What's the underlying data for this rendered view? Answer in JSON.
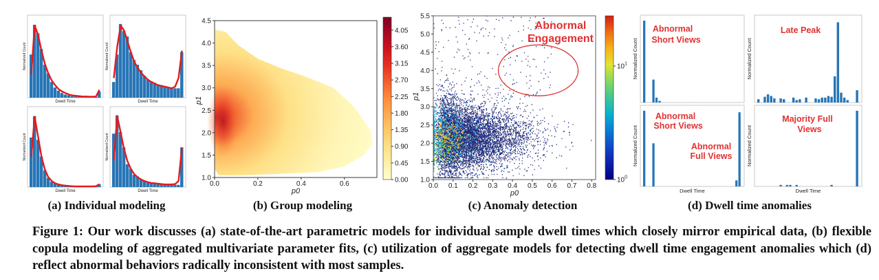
{
  "caption": "Figure 1: Our work discusses (a) state-of-the-art parametric models for individual sample dwell times which closely mirror empirical data, (b) flexible copula modeling of aggregated multivariate parameter fits, (c) utilization of aggregate models for detecting dwell time engagement anomalies which (d) reflect abnormal behaviors radically inconsistent with most samples.",
  "subcaptions": {
    "a": "(a) Individual modeling",
    "b": "(b) Group modeling",
    "c": "(c) Anomaly detection",
    "d": "(d) Dwell time anomalies"
  },
  "colors": {
    "bar": "#2775b6",
    "fit": "#e41a1c",
    "annotation": "#e03131",
    "scatter_dots": "#222a7a"
  },
  "chart_data": [
    {
      "panel": "a",
      "type": "bar",
      "subplots": [
        {
          "xlabel": "Dwell Time",
          "ylabel": "Normalized Count",
          "values": [
            0.55,
            0.93,
            0.82,
            0.62,
            0.42,
            0.31,
            0.2,
            0.13,
            0.09,
            0.06,
            0.04,
            0.03,
            0.02,
            0.02,
            0.015,
            0.01,
            0.01,
            0.01,
            0.01,
            0.01,
            0.08
          ],
          "fit": [
            0.3,
            0.92,
            0.8,
            0.6,
            0.43,
            0.31,
            0.22,
            0.16,
            0.11,
            0.08,
            0.06,
            0.04,
            0.03,
            0.025,
            0.02,
            0.015,
            0.015,
            0.012,
            0.012,
            0.015,
            0.1
          ]
        },
        {
          "xlabel": "Dwell Time",
          "ylabel": "Normalized Count",
          "values": [
            0.2,
            0.55,
            0.94,
            0.85,
            0.78,
            0.58,
            0.48,
            0.42,
            0.35,
            0.28,
            0.23,
            0.21,
            0.19,
            0.17,
            0.16,
            0.14,
            0.13,
            0.12,
            0.12,
            0.12,
            0.58
          ],
          "fit": [
            0.25,
            0.65,
            0.92,
            0.86,
            0.72,
            0.58,
            0.46,
            0.38,
            0.32,
            0.27,
            0.23,
            0.2,
            0.18,
            0.16,
            0.15,
            0.14,
            0.13,
            0.12,
            0.14,
            0.25,
            0.6
          ]
        },
        {
          "xlabel": "Dwell Time",
          "ylabel": "Normalized Count",
          "values": [
            0.65,
            0.93,
            0.62,
            0.4,
            0.22,
            0.12,
            0.07,
            0.05,
            0.03,
            0.02,
            0.015,
            0.01,
            0.01,
            0.01,
            0.01,
            0.01,
            0.01,
            0.01,
            0.01,
            0.01,
            0.04
          ],
          "fit": [
            0.4,
            0.92,
            0.66,
            0.4,
            0.23,
            0.13,
            0.08,
            0.05,
            0.035,
            0.025,
            0.02,
            0.015,
            0.012,
            0.01,
            0.01,
            0.01,
            0.01,
            0.01,
            0.01,
            0.012,
            0.04
          ]
        },
        {
          "xlabel": "Dwell Time",
          "ylabel": "Normalized Count",
          "values": [
            0.7,
            0.94,
            0.72,
            0.52,
            0.3,
            0.24,
            0.16,
            0.14,
            0.1,
            0.08,
            0.06,
            0.05,
            0.05,
            0.04,
            0.04,
            0.03,
            0.03,
            0.03,
            0.03,
            0.03,
            0.52
          ],
          "fit": [
            0.35,
            0.93,
            0.72,
            0.5,
            0.34,
            0.24,
            0.17,
            0.13,
            0.1,
            0.08,
            0.065,
            0.055,
            0.05,
            0.045,
            0.04,
            0.035,
            0.035,
            0.035,
            0.04,
            0.08,
            0.52
          ]
        }
      ]
    },
    {
      "panel": "b",
      "type": "heatmap",
      "xlabel": "p0",
      "ylabel": "p1",
      "xlim": [
        0.0,
        0.75
      ],
      "ylim": [
        1.0,
        4.5
      ],
      "x_ticks": [
        "0.0",
        "0.2",
        "0.4",
        "0.6"
      ],
      "y_ticks": [
        "1.0",
        "1.5",
        "2.0",
        "2.5",
        "3.0",
        "3.5",
        "4.0",
        "4.5"
      ],
      "colorbar_ticks": [
        "0.00",
        "0.45",
        "0.90",
        "1.35",
        "1.80",
        "2.25",
        "2.70",
        "3.15",
        "3.60",
        "4.05"
      ],
      "colorbar_range": [
        0.0,
        4.4
      ],
      "peak": {
        "x": 0.04,
        "y": 2.25
      }
    },
    {
      "panel": "c",
      "type": "scatter",
      "xlabel": "p0",
      "ylabel": "p1",
      "xlim": [
        0.0,
        0.82
      ],
      "ylim": [
        1.0,
        5.5
      ],
      "x_ticks": [
        "0.0",
        "0.1",
        "0.2",
        "0.3",
        "0.4",
        "0.5",
        "0.6",
        "0.7",
        "0.8"
      ],
      "y_ticks": [
        "1.0",
        "1.5",
        "2.0",
        "2.5",
        "3.0",
        "3.5",
        "4.0",
        "4.5",
        "5.0",
        "5.5"
      ],
      "colorbar_ticks": [
        "10^1",
        "10^0"
      ],
      "annotation": "Abnormal Engagement",
      "annotation_lines": [
        "Abnormal",
        "Engagement"
      ],
      "anomaly_region": {
        "x": 0.53,
        "y": 4.0
      }
    },
    {
      "panel": "d",
      "type": "bar",
      "subplots": [
        {
          "xlabel": "Dwell Time",
          "ylabel": "Normalized Count",
          "labels": [
            "Abnormal",
            "Short Views"
          ],
          "values": [
            1.0,
            0.0,
            0.0,
            0.28,
            0.06,
            0.02,
            0.0,
            0.0,
            0.0,
            0.0,
            0.0,
            0.0,
            0.0,
            0.0,
            0.0,
            0.0,
            0.0,
            0.0,
            0.0,
            0.0,
            0.0,
            0.0,
            0.0,
            0.0,
            0.0,
            0.0,
            0.0,
            0.0,
            0.0,
            0.0,
            0.0,
            0.0
          ]
        },
        {
          "xlabel": "Dwell Time",
          "ylabel": "Normalized Count",
          "labels": [
            "Late Peak"
          ],
          "values": [
            0.04,
            0.0,
            0.07,
            0.1,
            0.08,
            0.05,
            0.0,
            0.05,
            0.04,
            0.0,
            0.0,
            0.06,
            0.03,
            0.04,
            0.0,
            0.06,
            0.0,
            0.0,
            0.05,
            0.04,
            0.06,
            0.06,
            0.08,
            0.07,
            0.32,
            0.98,
            0.12,
            0.06,
            0.03,
            0.0,
            0.0,
            0.15
          ]
        },
        {
          "xlabel": "Dwell Time",
          "ylabel": "Normalized Count",
          "labels": [
            "Abnormal",
            "Short Views",
            "Abnormal",
            "Full Views"
          ],
          "values": [
            1.0,
            0.0,
            0.0,
            0.57,
            0.0,
            0.0,
            0.0,
            0.0,
            0.0,
            0.0,
            0.0,
            0.0,
            0.0,
            0.0,
            0.0,
            0.0,
            0.0,
            0.0,
            0.0,
            0.0,
            0.0,
            0.0,
            0.0,
            0.0,
            0.0,
            0.0,
            0.0,
            0.0,
            0.0,
            0.0,
            0.08,
            0.98
          ]
        },
        {
          "xlabel": "Dwell Time",
          "ylabel": "Normalized Count",
          "labels": [
            "Majority Full",
            "Views"
          ],
          "values": [
            0.0,
            0.0,
            0.0,
            0.0,
            0.0,
            0.0,
            0.0,
            0.02,
            0.0,
            0.02,
            0.02,
            0.0,
            0.02,
            0.0,
            0.0,
            0.0,
            0.0,
            0.0,
            0.0,
            0.0,
            0.0,
            0.0,
            0.0,
            0.02,
            0.0,
            0.0,
            0.0,
            0.0,
            0.0,
            0.0,
            0.0,
            1.0
          ]
        }
      ]
    }
  ]
}
